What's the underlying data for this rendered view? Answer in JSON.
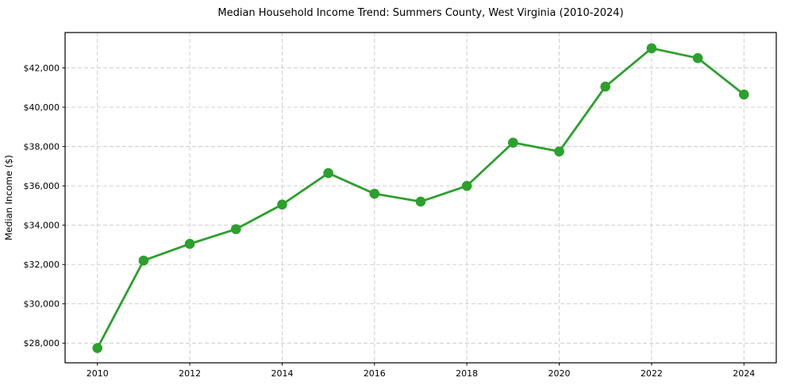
{
  "figure": {
    "background": "#ffffff",
    "frame_color": "#000000",
    "text_color": "#000000"
  },
  "chart_data": {
    "type": "line",
    "title": "Median Household Income Trend: Summers County, West Virginia (2010-2024)",
    "xlabel": "",
    "ylabel": "Median Income ($)",
    "x": [
      2010,
      2011,
      2012,
      2013,
      2014,
      2015,
      2016,
      2017,
      2018,
      2019,
      2020,
      2021,
      2022,
      2023,
      2024
    ],
    "series": [
      {
        "name": "Median Household Income",
        "values": [
          27750,
          32200,
          33050,
          33800,
          35050,
          36650,
          35600,
          35200,
          36000,
          38200,
          37750,
          41050,
          43000,
          42500,
          40650
        ]
      }
    ],
    "xlim": [
      2009.3,
      2024.7
    ],
    "ylim": [
      27000,
      43800
    ],
    "x_ticks": [
      2010,
      2012,
      2014,
      2016,
      2018,
      2020,
      2022,
      2024
    ],
    "x_tick_labels": [
      "2010",
      "2012",
      "2014",
      "2016",
      "2018",
      "2020",
      "2022",
      "2024"
    ],
    "y_ticks": [
      28000,
      30000,
      32000,
      34000,
      36000,
      38000,
      40000,
      42000
    ],
    "y_tick_labels": [
      "$28,000",
      "$30,000",
      "$32,000",
      "$34,000",
      "$36,000",
      "$38,000",
      "$40,000",
      "$42,000"
    ],
    "grid": "both",
    "grid_style": "dashed",
    "grid_color": "#c9c9c9",
    "legend": "none",
    "line_color": "#2ca02c",
    "marker": "circle",
    "marker_color": "#2ca02c"
  }
}
